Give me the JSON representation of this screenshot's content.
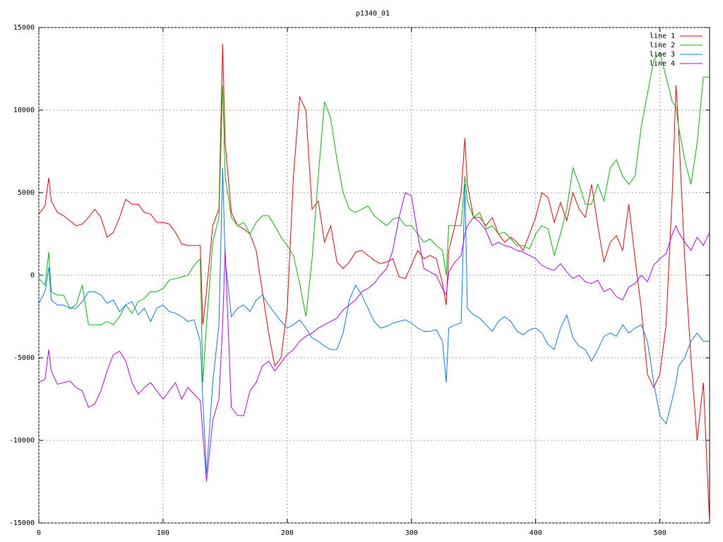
{
  "chart_data": {
    "type": "line",
    "title": "p1340_01",
    "x": [
      0,
      5,
      8,
      10,
      15,
      20,
      25,
      30,
      35,
      40,
      45,
      50,
      55,
      60,
      65,
      70,
      75,
      80,
      85,
      90,
      95,
      100,
      105,
      110,
      115,
      120,
      125,
      130,
      132,
      135,
      140,
      145,
      148,
      150,
      155,
      160,
      165,
      170,
      175,
      180,
      185,
      190,
      195,
      200,
      205,
      210,
      215,
      220,
      225,
      230,
      235,
      240,
      245,
      250,
      255,
      260,
      265,
      270,
      275,
      280,
      285,
      290,
      295,
      300,
      305,
      310,
      315,
      320,
      325,
      328,
      330,
      335,
      340,
      343,
      345,
      350,
      355,
      360,
      365,
      370,
      375,
      380,
      385,
      390,
      395,
      400,
      405,
      410,
      415,
      420,
      425,
      430,
      435,
      440,
      445,
      450,
      455,
      460,
      465,
      470,
      475,
      480,
      485,
      490,
      495,
      500,
      505,
      510,
      513,
      515,
      520,
      525,
      530,
      535,
      540
    ],
    "series": [
      {
        "name": "line 1",
        "color": "#ff0000",
        "values": [
          3700,
          4200,
          5900,
          4500,
          3800,
          3600,
          3300,
          3000,
          3100,
          3500,
          4000,
          3500,
          2300,
          2600,
          3500,
          4600,
          4300,
          4300,
          3800,
          3700,
          3200,
          3200,
          3100,
          2600,
          1900,
          1800,
          1800,
          1800,
          -3000,
          -1000,
          3000,
          4000,
          14000,
          8000,
          3800,
          3000,
          2800,
          2500,
          1500,
          -1000,
          -3500,
          -5500,
          -5000,
          -2000,
          6000,
          10800,
          10000,
          4000,
          4500,
          2000,
          3000,
          800,
          400,
          800,
          1400,
          1500,
          1200,
          900,
          700,
          800,
          1000,
          -100,
          -200,
          600,
          1500,
          1000,
          1200,
          1000,
          -500,
          -1800,
          1500,
          3000,
          5000,
          8300,
          5500,
          3500,
          3500,
          3000,
          3500,
          2500,
          2000,
          2300,
          2000,
          1500,
          2500,
          3500,
          5000,
          4700,
          3200,
          4400,
          3300,
          5000,
          4000,
          3500,
          5500,
          3000,
          800,
          2000,
          2400,
          1500,
          4300,
          1000,
          -2000,
          -6000,
          -6800,
          -6000,
          -3000,
          5000,
          11500,
          9000,
          1000,
          -5000,
          -10000,
          -6500,
          -15000
        ]
      },
      {
        "name": "line 2",
        "color": "#00c000",
        "values": [
          -200,
          -600,
          1400,
          -1000,
          -1200,
          -1200,
          -2000,
          -1800,
          -600,
          -3000,
          -3000,
          -3000,
          -2800,
          -3000,
          -2500,
          -1800,
          -2300,
          -1600,
          -1400,
          -1000,
          -1000,
          -800,
          -300,
          -200,
          -100,
          0,
          600,
          1000,
          -6500,
          -3000,
          2000,
          3500,
          11500,
          6000,
          3500,
          3000,
          3200,
          2500,
          3200,
          3600,
          3600,
          3000,
          2300,
          1800,
          1200,
          -500,
          -2500,
          1000,
          6000,
          10500,
          9500,
          7000,
          5000,
          4000,
          3800,
          4000,
          4200,
          3600,
          3300,
          3000,
          3400,
          3500,
          3000,
          3000,
          2500,
          2000,
          2200,
          1800,
          1500,
          0,
          3000,
          3000,
          3000,
          6000,
          4500,
          3500,
          3800,
          2800,
          3000,
          2500,
          2600,
          2200,
          1800,
          1800,
          1600,
          2500,
          3000,
          2800,
          1200,
          2500,
          4000,
          6500,
          5500,
          4300,
          4300,
          5500,
          4500,
          6500,
          7000,
          6000,
          5500,
          6000,
          9000,
          11000,
          13000,
          13500,
          12000,
          10500,
          10200,
          9000,
          7000,
          5500,
          8000,
          12000,
          12000
        ]
      },
      {
        "name": "line 3",
        "color": "#0080ff",
        "values": [
          -1700,
          -1000,
          500,
          -1500,
          -1800,
          -1800,
          -2000,
          -2000,
          -1600,
          -1000,
          -1000,
          -1200,
          -1700,
          -1500,
          -2200,
          -1800,
          -1600,
          -2400,
          -2000,
          -2800,
          -2000,
          -1800,
          -2200,
          -2300,
          -2500,
          -2800,
          -2700,
          -4000,
          -7500,
          -12000,
          -6500,
          -3000,
          6500,
          1000,
          -2500,
          -2000,
          -1800,
          -2200,
          -1500,
          -1200,
          -1800,
          -2300,
          -2800,
          -3200,
          -3000,
          -2700,
          -3200,
          -3800,
          -4000,
          -4300,
          -4500,
          -4500,
          -3500,
          -1500,
          -600,
          -1200,
          -2000,
          -2800,
          -3200,
          -3100,
          -2900,
          -2800,
          -2700,
          -2900,
          -3200,
          -3400,
          -3400,
          -3300,
          -4000,
          -6500,
          -3200,
          -3000,
          -2900,
          5500,
          -2000,
          -2400,
          -2600,
          -3000,
          -3400,
          -2800,
          -2500,
          -2800,
          -3400,
          -3600,
          -3300,
          -3200,
          -3500,
          -4200,
          -4500,
          -3200,
          -2400,
          -3800,
          -4300,
          -4500,
          -5200,
          -4500,
          -3700,
          -3500,
          -3700,
          -3000,
          -3500,
          -3200,
          -3000,
          -4000,
          -6500,
          -8500,
          -9000,
          -7500,
          -6500,
          -5500,
          -5000,
          -4000,
          -3500,
          -4000,
          -4000
        ]
      },
      {
        "name": "line 4",
        "color": "#c000ff",
        "values": [
          -6500,
          -6300,
          -4500,
          -5800,
          -6600,
          -6500,
          -6400,
          -6800,
          -7000,
          -8000,
          -7800,
          -7000,
          -5800,
          -4800,
          -4600,
          -5200,
          -6500,
          -7200,
          -6800,
          -6500,
          -7000,
          -7500,
          -7000,
          -6500,
          -7500,
          -6800,
          -7200,
          -7600,
          -9500,
          -12500,
          -8800,
          -7500,
          -3000,
          1500,
          -8000,
          -8500,
          -8500,
          -7000,
          -6500,
          -5500,
          -5200,
          -5800,
          -5300,
          -4800,
          -4500,
          -4000,
          -3700,
          -3500,
          -3200,
          -3000,
          -2800,
          -2600,
          -2100,
          -1800,
          -1500,
          -1000,
          -800,
          -500,
          0,
          400,
          1500,
          3500,
          5000,
          4800,
          2500,
          400,
          200,
          0,
          -800,
          -1200,
          200,
          800,
          1200,
          2500,
          3000,
          3500,
          3200,
          2700,
          1800,
          2000,
          1800,
          1700,
          1500,
          1400,
          1200,
          1000,
          600,
          400,
          300,
          700,
          200,
          -200,
          0,
          -400,
          -500,
          -300,
          -1000,
          -800,
          -1300,
          -1500,
          -700,
          -500,
          0,
          -400,
          600,
          1000,
          1300,
          2500,
          3000,
          2600,
          2000,
          1500,
          2300,
          1800,
          2600
        ]
      }
    ],
    "xlim": [
      0,
      540
    ],
    "ylim": [
      -15000,
      15000
    ],
    "xticks": [
      0,
      100,
      200,
      300,
      400,
      500
    ],
    "yticks": [
      -15000,
      -10000,
      -5000,
      0,
      5000,
      10000,
      15000
    ],
    "grid": true,
    "legend": "top-right"
  }
}
